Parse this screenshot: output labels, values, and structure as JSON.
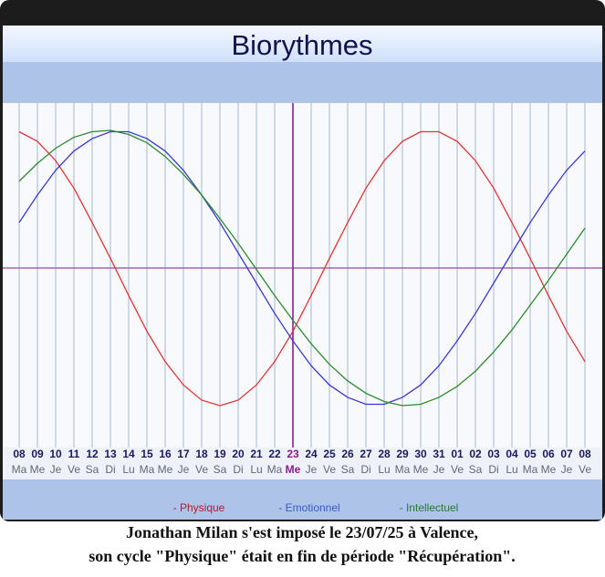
{
  "chart_data": {
    "type": "line",
    "title": "Biorythmes",
    "categories": [
      "08",
      "09",
      "10",
      "11",
      "12",
      "13",
      "14",
      "15",
      "16",
      "17",
      "18",
      "19",
      "20",
      "21",
      "22",
      "23",
      "24",
      "25",
      "26",
      "27",
      "28",
      "29",
      "30",
      "31",
      "01",
      "02",
      "03",
      "04",
      "05",
      "06",
      "07",
      "08"
    ],
    "weekdays": [
      "Ma",
      "Me",
      "Je",
      "Ve",
      "Sa",
      "Di",
      "Lu",
      "Ma",
      "Me",
      "Je",
      "Ve",
      "Sa",
      "Di",
      "Lu",
      "Ma",
      "Me",
      "Je",
      "Ve",
      "Sa",
      "Di",
      "Lu",
      "Ma",
      "Me",
      "Je",
      "Ve",
      "Sa",
      "Di",
      "Lu",
      "Ma",
      "Me",
      "Je",
      "Ve"
    ],
    "current_index": 15,
    "ylim": [
      -100,
      100
    ],
    "series": [
      {
        "name": "- Physique",
        "color": "#e03434",
        "legend_color": "#b01c2c",
        "values": [
          99,
          92,
          78,
          58,
          33,
          7,
          -20,
          -46,
          -68,
          -85,
          -96,
          -100,
          -96,
          -85,
          -68,
          -46,
          -20,
          7,
          33,
          58,
          78,
          92,
          99,
          99,
          92,
          78,
          58,
          33,
          7,
          -20,
          -46,
          -68
        ]
      },
      {
        "name": "- Emotionnel",
        "color": "#3a3ad0",
        "legend_color": "#3a58c8",
        "values": [
          33,
          53,
          71,
          85,
          94,
          99,
          99,
          94,
          85,
          71,
          53,
          33,
          11,
          -11,
          -33,
          -53,
          -71,
          -85,
          -94,
          -99,
          -99,
          -94,
          -85,
          -71,
          -53,
          -33,
          -11,
          11,
          33,
          53,
          71,
          85
        ]
      },
      {
        "name": "- Intellectuel",
        "color": "#2e8a2e",
        "legend_color": "#2a7a2a",
        "values": [
          63,
          76,
          87,
          95,
          99,
          100,
          97,
          91,
          81,
          68,
          53,
          36,
          18,
          -1,
          -20,
          -38,
          -55,
          -70,
          -82,
          -91,
          -97,
          -100,
          -99,
          -94,
          -86,
          -75,
          -61,
          -45,
          -27,
          -9,
          10,
          29
        ]
      }
    ]
  },
  "caption": [
    "Jonathan Milan s'est imposé le 23/07/25 à Valence,",
    "son cycle \"Physique\" était en fin de période \"Récupération\"."
  ]
}
